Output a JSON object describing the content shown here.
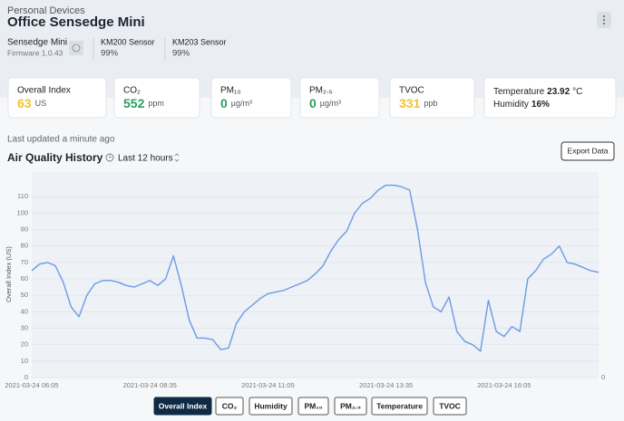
{
  "header": {
    "breadcrumb": "Personal Devices",
    "title": "Office Sensedge Mini"
  },
  "device": {
    "name": "Sensedge Mini",
    "firmware": "Firmware 1.0.43"
  },
  "sensors": [
    {
      "name": "KM200 Sensor",
      "status": "99%"
    },
    {
      "name": "KM203 Sensor",
      "status": "99%"
    }
  ],
  "cards": [
    {
      "label": "Overall Index",
      "value": "63",
      "unit": "US",
      "color": "#f2c230"
    },
    {
      "label": "CO₂",
      "value": "552",
      "unit": "ppm",
      "color": "#2e9e5e"
    },
    {
      "label": "PM₁₀",
      "value": "0",
      "unit": "µg/m³",
      "color": "#2e9e5e"
    },
    {
      "label": "PM₂.₅",
      "value": "0",
      "unit": "µg/m³",
      "color": "#2e9e5e"
    },
    {
      "label": "TVOC",
      "value": "331",
      "unit": "ppb",
      "color": "#f2c230"
    }
  ],
  "climate": {
    "temperature_label": "Temperature",
    "temperature": "23.92",
    "temperature_unit": "°C",
    "humidity_label": "Humidity",
    "humidity": "16%"
  },
  "status": "Last updated a minute ago",
  "range": "Last 12 hours",
  "export": "Export Data",
  "chart_data": {
    "type": "line",
    "title": "Air Quality History",
    "ylabel": "Overall Index (US)",
    "color": "#6b9be6",
    "grid": true,
    "x": [
      "2021-03-24 06:05",
      "2021-03-24 06:15",
      "2021-03-24 06:25",
      "2021-03-24 06:35",
      "2021-03-24 06:45",
      "2021-03-24 06:55",
      "2021-03-24 07:05",
      "2021-03-24 07:15",
      "2021-03-24 07:25",
      "2021-03-24 07:35",
      "2021-03-24 07:45",
      "2021-03-24 07:55",
      "2021-03-24 08:05",
      "2021-03-24 08:15",
      "2021-03-24 08:25",
      "2021-03-24 08:35",
      "2021-03-24 08:45",
      "2021-03-24 08:55",
      "2021-03-24 09:05",
      "2021-03-24 09:15",
      "2021-03-24 09:25",
      "2021-03-24 09:35",
      "2021-03-24 09:45",
      "2021-03-24 09:55",
      "2021-03-24 10:05",
      "2021-03-24 10:15",
      "2021-03-24 10:25",
      "2021-03-24 10:35",
      "2021-03-24 10:45",
      "2021-03-24 10:55",
      "2021-03-24 11:05",
      "2021-03-24 11:15",
      "2021-03-24 11:25",
      "2021-03-24 11:35",
      "2021-03-24 11:45",
      "2021-03-24 11:55",
      "2021-03-24 12:05",
      "2021-03-24 12:15",
      "2021-03-24 12:25",
      "2021-03-24 12:35",
      "2021-03-24 12:45",
      "2021-03-24 12:55",
      "2021-03-24 13:05",
      "2021-03-24 13:15",
      "2021-03-24 13:25",
      "2021-03-24 13:35",
      "2021-03-24 13:45",
      "2021-03-24 13:55",
      "2021-03-24 14:05",
      "2021-03-24 14:15",
      "2021-03-24 14:25",
      "2021-03-24 14:35",
      "2021-03-24 14:45",
      "2021-03-24 14:55",
      "2021-03-24 15:05",
      "2021-03-24 15:15",
      "2021-03-24 15:25",
      "2021-03-24 15:35",
      "2021-03-24 15:45",
      "2021-03-24 15:55",
      "2021-03-24 16:05",
      "2021-03-24 16:15",
      "2021-03-24 16:25",
      "2021-03-24 16:35",
      "2021-03-24 16:45",
      "2021-03-24 16:55",
      "2021-03-24 17:05",
      "2021-03-24 17:15",
      "2021-03-24 17:25",
      "2021-03-24 17:35",
      "2021-03-24 17:45",
      "2021-03-24 17:55",
      "2021-03-24 18:05"
    ],
    "values": [
      65,
      69,
      70,
      68,
      58,
      43,
      37,
      50,
      57,
      59,
      59,
      58,
      56,
      55,
      57,
      59,
      56,
      60,
      74,
      56,
      35,
      24,
      24,
      23,
      17,
      18,
      33,
      40,
      44,
      48,
      51,
      52,
      53,
      55,
      57,
      59,
      63,
      68,
      77,
      84,
      89,
      100,
      106,
      109,
      114,
      117,
      117,
      116,
      114,
      90,
      58,
      43,
      40,
      49,
      28,
      22,
      20,
      16,
      47,
      28,
      25,
      31,
      28,
      60,
      65,
      72,
      75,
      80,
      70,
      69,
      67,
      65,
      64
    ],
    "xlim": [
      "2021-03-24 06:05",
      "2021-03-24 18:05"
    ],
    "xticks": [
      "2021-03-24 06:05",
      "2021-03-24 08:35",
      "2021-03-24 11:05",
      "2021-03-24 13:35",
      "2021-03-24 16:05"
    ],
    "ylim": [
      0,
      125
    ],
    "yticks": [
      0,
      10,
      20,
      30,
      40,
      50,
      60,
      70,
      80,
      90,
      100,
      110
    ],
    "y2lim": [
      0,
      1
    ],
    "y2ticks": [
      0
    ]
  },
  "buttons": [
    {
      "label": "Overall Index",
      "active": true
    },
    {
      "label": "CO₂",
      "active": false
    },
    {
      "label": "Humidity",
      "active": false
    },
    {
      "label": "PM₁₀",
      "active": false
    },
    {
      "label": "PM₂.₅",
      "active": false
    },
    {
      "label": "Temperature",
      "active": false
    },
    {
      "label": "TVOC",
      "active": false
    }
  ]
}
